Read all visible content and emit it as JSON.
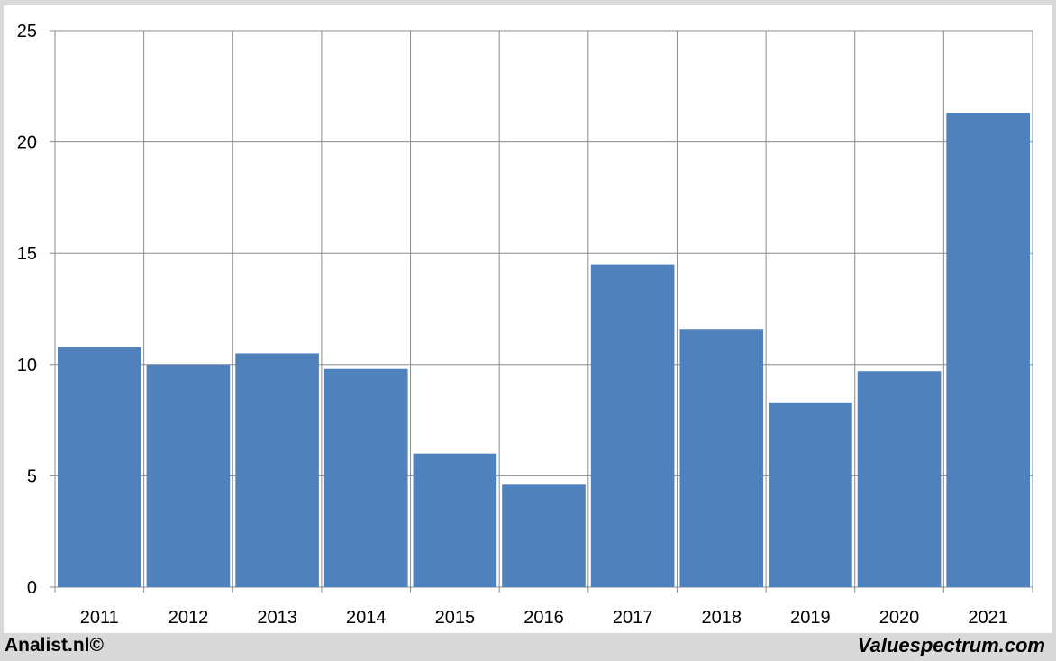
{
  "chart_data": {
    "type": "bar",
    "categories": [
      "2011",
      "2012",
      "2013",
      "2014",
      "2015",
      "2016",
      "2017",
      "2018",
      "2019",
      "2020",
      "2021"
    ],
    "values": [
      10.8,
      10.0,
      10.5,
      9.8,
      6.0,
      4.6,
      14.5,
      11.6,
      8.3,
      9.7,
      21.3
    ],
    "ylim": [
      0,
      25
    ],
    "yticks": [
      0,
      5,
      10,
      15,
      20,
      25
    ],
    "grid": true,
    "bar_color": "#4f81bd",
    "title": "",
    "xlabel": "",
    "ylabel": ""
  },
  "footer": {
    "left": "Analist.nl©",
    "right": "Valuespectrum.com"
  }
}
